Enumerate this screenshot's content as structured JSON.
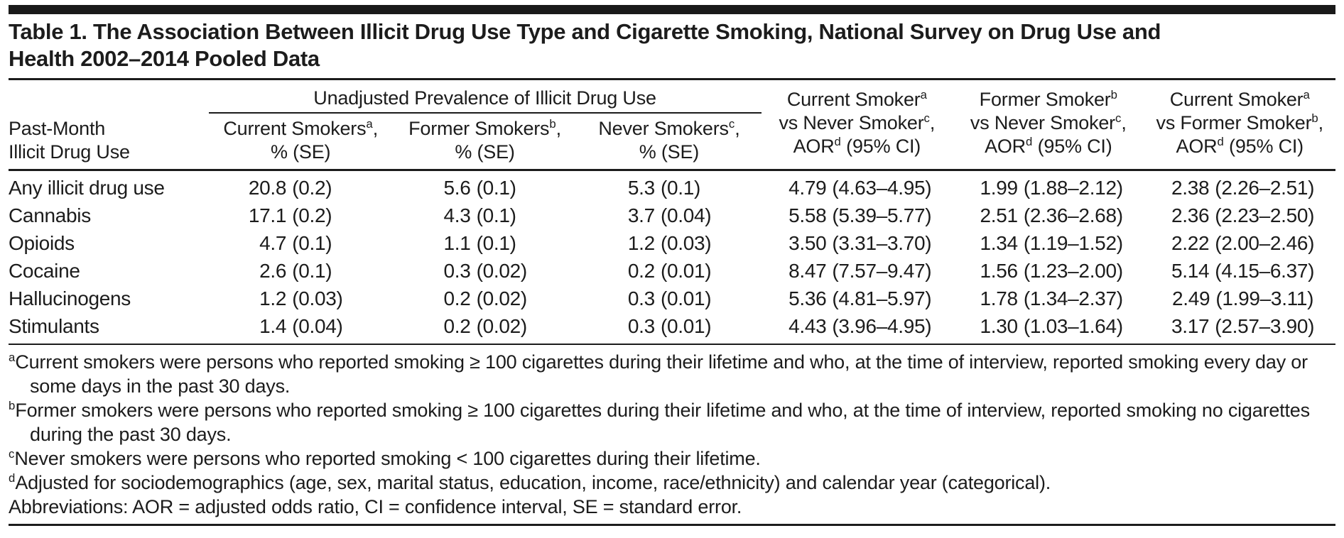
{
  "title": {
    "line1": "Table 1. The Association Between Illicit Drug Use Type and Cigarette Smoking, National Survey on Drug Use and",
    "line2": "Health 2002–2014 Pooled Data"
  },
  "table": {
    "row_header": {
      "line1": "Past-Month",
      "line2": "Illicit Drug Use"
    },
    "spanner_label": "Unadjusted Prevalence of Illicit Drug Use",
    "prevalence_columns": [
      {
        "top": "Current Smokers^a^,",
        "bottom": "% (SE)"
      },
      {
        "top": "Former Smokers^b^,",
        "bottom": "% (SE)"
      },
      {
        "top": "Never Smokers^c^,",
        "bottom": "% (SE)"
      }
    ],
    "aor_columns": [
      {
        "lines": [
          "Current Smoker^a^",
          "vs Never Smoker^c^,",
          "AOR^d^ (95% CI)"
        ]
      },
      {
        "lines": [
          "Former Smoker^b^",
          "vs Never Smoker^c^,",
          "AOR^d^ (95% CI)"
        ]
      },
      {
        "lines": [
          "Current Smoker^a^",
          "vs Former Smoker^b^,",
          "AOR^d^ (95% CI)"
        ]
      }
    ],
    "rows": [
      {
        "label": "Any illicit drug use",
        "cells": [
          "20.8 (0.2)",
          "5.6 (0.1)",
          "5.3 (0.1)",
          "4.79 (4.63–4.95)",
          "1.99 (1.88–2.12)",
          "2.38 (2.26–2.51)"
        ]
      },
      {
        "label": "Cannabis",
        "cells": [
          "17.1 (0.2)",
          "4.3 (0.1)",
          "3.7 (0.04)",
          "5.58 (5.39–5.77)",
          "2.51 (2.36–2.68)",
          "2.36 (2.23–2.50)"
        ]
      },
      {
        "label": "Opioids",
        "cells": [
          "4.7 (0.1)",
          "1.1 (0.1)",
          "1.2 (0.03)",
          "3.50 (3.31–3.70)",
          "1.34 (1.19–1.52)",
          "2.22 (2.00–2.46)"
        ]
      },
      {
        "label": "Cocaine",
        "cells": [
          "2.6 (0.1)",
          "0.3 (0.02)",
          "0.2 (0.01)",
          "8.47 (7.57–9.47)",
          "1.56 (1.23–2.00)",
          "5.14 (4.15–6.37)"
        ]
      },
      {
        "label": "Hallucinogens",
        "cells": [
          "1.2 (0.03)",
          "0.2 (0.02)",
          "0.3 (0.01)",
          "5.36 (4.81–5.97)",
          "1.78 (1.34–2.37)",
          "2.49 (1.99–3.11)"
        ]
      },
      {
        "label": "Stimulants",
        "cells": [
          "1.4 (0.04)",
          "0.2 (0.02)",
          "0.3 (0.01)",
          "4.43 (3.96–4.95)",
          "1.30 (1.03–1.64)",
          "3.17 (2.57–3.90)"
        ]
      }
    ]
  },
  "footnotes": [
    {
      "sup": "a",
      "text": "Current smokers were persons who reported smoking ≥ 100 cigarettes during their lifetime and who, at the time of interview, reported smoking every day or some days in the past 30 days."
    },
    {
      "sup": "b",
      "text": "Former smokers were persons who reported smoking ≥ 100 cigarettes during their lifetime and who, at the time of interview, reported smoking no cigarettes during the past 30 days."
    },
    {
      "sup": "c",
      "text": "Never smokers were persons who reported smoking < 100 cigarettes during their lifetime."
    },
    {
      "sup": "d",
      "text": "Adjusted for sociodemographics (age, sex, marital status, education, income, race/ethnicity) and calendar year (categorical)."
    },
    {
      "sup": "",
      "text": "Abbreviations: AOR = adjusted odds ratio, CI = confidence interval, SE = standard error."
    }
  ],
  "colors": {
    "background": "#ffffff",
    "text": "#1c1c1c",
    "rule": "#1c1c1c",
    "top_bar": "#1a1a1a"
  }
}
